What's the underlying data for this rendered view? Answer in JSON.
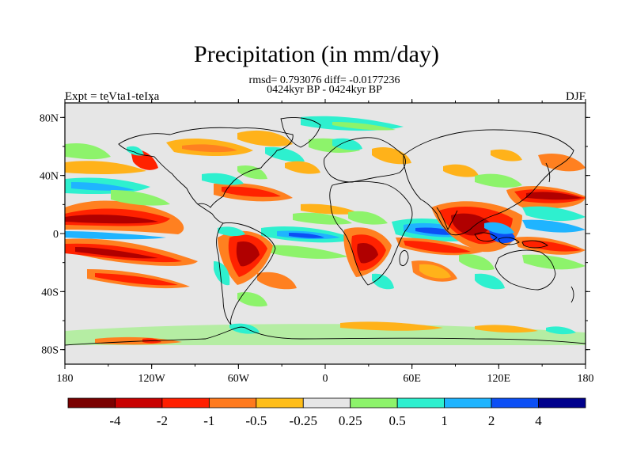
{
  "title": "Precipitation (in mm/day)",
  "stats_line": "rmsd= 0.793076 diff= -0.0177236",
  "period_line": "0424kyr BP - 0424kyr BP",
  "experiment_label": "Expt = teVta1-teIxa",
  "season_label": "DJF",
  "colors": {
    "ocean_background": "#e6e6e6",
    "coast": "#000000"
  },
  "axes": {
    "lon_ticks": [
      "180",
      "120W",
      "60W",
      "0",
      "60E",
      "120E",
      "180"
    ],
    "lat_ticks": [
      "80N",
      "40N",
      "0",
      "40S",
      "80S"
    ]
  },
  "colorbar": {
    "colors": [
      "#7a0000",
      "#c80000",
      "#ff1f00",
      "#ff7a1e",
      "#ffbe19",
      "#e6e6e6",
      "#8df36b",
      "#2ef0cf",
      "#1fb4ff",
      "#0c4ff5",
      "#00008c"
    ],
    "labels": [
      "-4",
      "-2",
      "-1",
      "-0.5",
      "-0.25",
      "0.25",
      "0.5",
      "1",
      "2",
      "4"
    ]
  },
  "map_anomaly_colors": {
    "dark_red": "#b00000",
    "red": "#ff2200",
    "orange": "#ff8020",
    "yellow": "#ffb21a",
    "green": "#8df36b",
    "cyan": "#2ef0cf",
    "lightblue": "#1fb4ff",
    "blue": "#0c4ff5"
  }
}
